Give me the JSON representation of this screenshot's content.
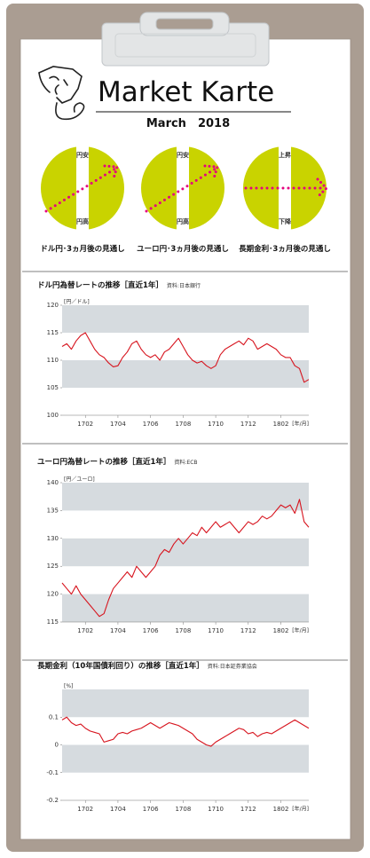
{
  "header": {
    "title": "Market Karte",
    "date": "March　2018"
  },
  "forecasts": [
    {
      "label": "ドル円･3ヵ月後の見通し",
      "top": "円安",
      "bottom": "円高"
    },
    {
      "label": "ユーロ円･3ヵ月後の見通し",
      "top": "円安",
      "bottom": "円高"
    },
    {
      "label": "長期金利･3ヵ月後の見通し",
      "top": "上昇",
      "bottom": "下降"
    }
  ],
  "chart_data": [
    {
      "type": "line",
      "title": "ドル円為替レートの推移［直近1年］",
      "source": "資料:日本銀行",
      "y_unit": "[円／ドル]",
      "x_unit": "[年/月]",
      "categories": [
        null,
        null,
        null,
        null,
        null,
        "1702",
        null,
        null,
        null,
        null,
        null,
        null,
        "1704",
        null,
        null,
        null,
        null,
        null,
        null,
        "1706",
        null,
        null,
        null,
        null,
        null,
        null,
        "1708",
        null,
        null,
        null,
        null,
        null,
        null,
        "1710",
        null,
        null,
        null,
        null,
        null,
        null,
        "1712",
        null,
        null,
        null,
        null,
        null,
        null,
        "1802",
        null,
        null,
        null,
        null,
        null,
        null
      ],
      "values": [
        112.5,
        113,
        112,
        113.5,
        114.5,
        115,
        113.5,
        112,
        111,
        110.5,
        109.5,
        108.8,
        109,
        110.5,
        111.5,
        113,
        113.5,
        112,
        111,
        110.5,
        111,
        110,
        111.5,
        112,
        113,
        114,
        112.5,
        111,
        110,
        109.5,
        109.8,
        109,
        108.5,
        109,
        111,
        112,
        112.5,
        113,
        113.5,
        112.8,
        114,
        113.5,
        112,
        112.5,
        113,
        112.5,
        112,
        111,
        110.5,
        110.5,
        109,
        108.5,
        106,
        106.5
      ],
      "color": "#d7141e",
      "ylim": [
        100,
        120
      ],
      "yticks": [
        100,
        105,
        110,
        115,
        120
      ],
      "shaded_bands": true,
      "band_color": "#d6dbdf"
    },
    {
      "type": "line",
      "title": "ユーロ円為替レートの推移［直近1年］",
      "source": "資料:ECB",
      "y_unit": "[円／ユーロ]",
      "x_unit": "[年/月]",
      "categories": [
        null,
        null,
        null,
        null,
        null,
        "1702",
        null,
        null,
        null,
        null,
        null,
        null,
        "1704",
        null,
        null,
        null,
        null,
        null,
        null,
        "1706",
        null,
        null,
        null,
        null,
        null,
        null,
        "1708",
        null,
        null,
        null,
        null,
        null,
        null,
        "1710",
        null,
        null,
        null,
        null,
        null,
        null,
        "1712",
        null,
        null,
        null,
        null,
        null,
        null,
        "1802",
        null,
        null,
        null,
        null,
        null,
        null
      ],
      "values": [
        122,
        121,
        120,
        121.5,
        120,
        119,
        118,
        117,
        116,
        116.5,
        119,
        121,
        122,
        123,
        124,
        123,
        125,
        124,
        123,
        124,
        125,
        127,
        128,
        127.5,
        129,
        130,
        129,
        130,
        131,
        130.5,
        132,
        131,
        132,
        133,
        132,
        132.5,
        133,
        132,
        131,
        132,
        133,
        132.5,
        133,
        134,
        133.5,
        134,
        135,
        136,
        135.5,
        136,
        134.5,
        137,
        133,
        132
      ],
      "color": "#d7141e",
      "ylim": [
        115,
        140
      ],
      "yticks": [
        115,
        120,
        125,
        130,
        135,
        140
      ],
      "shaded_bands": true,
      "band_color": "#d6dbdf"
    },
    {
      "type": "line",
      "title": "長期金利（10年国債利回り）の推移［直近1年］",
      "source": "資料:日本証券業協会",
      "y_unit": "[%]",
      "x_unit": "[年/月]",
      "categories": [
        null,
        null,
        null,
        null,
        null,
        "1702",
        null,
        null,
        null,
        null,
        null,
        null,
        "1704",
        null,
        null,
        null,
        null,
        null,
        null,
        "1706",
        null,
        null,
        null,
        null,
        null,
        null,
        "1708",
        null,
        null,
        null,
        null,
        null,
        null,
        "1710",
        null,
        null,
        null,
        null,
        null,
        null,
        "1712",
        null,
        null,
        null,
        null,
        null,
        null,
        "1802",
        null,
        null,
        null,
        null,
        null,
        null
      ],
      "values": [
        0.09,
        0.1,
        0.08,
        0.07,
        0.075,
        0.06,
        0.05,
        0.045,
        0.04,
        0.01,
        0.015,
        0.02,
        0.04,
        0.045,
        0.04,
        0.05,
        0.055,
        0.06,
        0.07,
        0.08,
        0.07,
        0.06,
        0.07,
        0.08,
        0.075,
        0.07,
        0.06,
        0.05,
        0.04,
        0.02,
        0.01,
        0,
        -0.005,
        0.01,
        0.02,
        0.03,
        0.04,
        0.05,
        0.06,
        0.055,
        0.04,
        0.045,
        0.03,
        0.04,
        0.045,
        0.04,
        0.05,
        0.06,
        0.07,
        0.08,
        0.09,
        0.08,
        0.07,
        0.06
      ],
      "color": "#d7141e",
      "ylim": [
        -0.2,
        0.2
      ],
      "yticks": [
        -0.2,
        -0.1,
        0,
        0.1
      ],
      "shaded_bands": true,
      "band_color": "#d6dbdf"
    }
  ]
}
